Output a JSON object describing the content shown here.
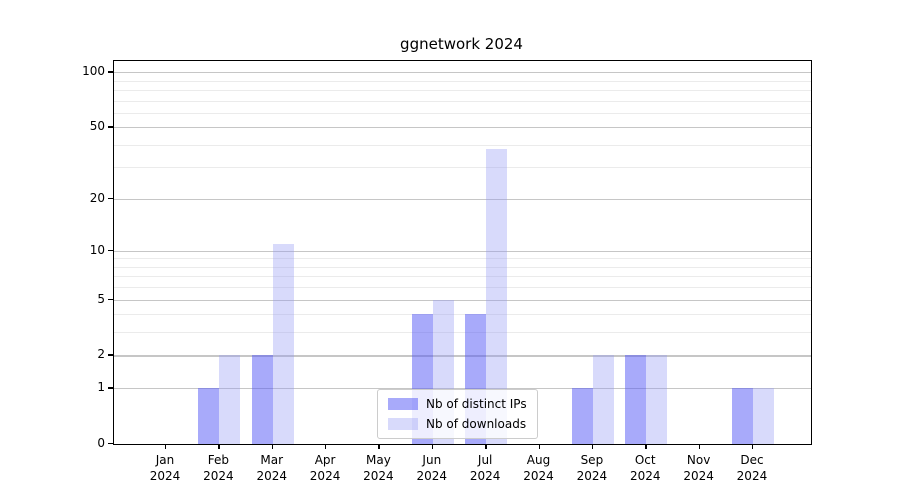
{
  "title": "ggnetwork 2024",
  "chart_data": {
    "type": "bar",
    "title": "ggnetwork 2024",
    "year_label": "2024",
    "categories": [
      "Jan",
      "Feb",
      "Mar",
      "Apr",
      "May",
      "Jun",
      "Jul",
      "Aug",
      "Sep",
      "Oct",
      "Nov",
      "Dec"
    ],
    "series": [
      {
        "name": "Nb of distinct IPs",
        "values": [
          0,
          1,
          2,
          0,
          0,
          4,
          4,
          0,
          1,
          2,
          0,
          1
        ],
        "color": "#a8aafa",
        "color_rgba": "rgba(81,85,245,0.5)"
      },
      {
        "name": "Nb of downloads",
        "values": [
          0,
          2,
          11,
          0,
          0,
          5,
          38,
          0,
          2,
          2,
          0,
          1
        ],
        "color": "#d8dafa",
        "color_rgba": "rgba(144,150,243,0.35)"
      }
    ],
    "xlabel": "",
    "ylabel": "",
    "yscale": "log1p",
    "ylim": [
      0,
      115
    ],
    "yticks_major": [
      0,
      1,
      2,
      5,
      10,
      20,
      50,
      100
    ],
    "yticks_minor": [
      3,
      4,
      6,
      7,
      8,
      9,
      30,
      40,
      60,
      70,
      80,
      90
    ],
    "grid": true,
    "legend_position": "lower center",
    "colors": {
      "grid_major": "#c6c6c6",
      "grid_minor": "#ebebeb",
      "spine": "#000000",
      "background": "#ffffff"
    }
  }
}
